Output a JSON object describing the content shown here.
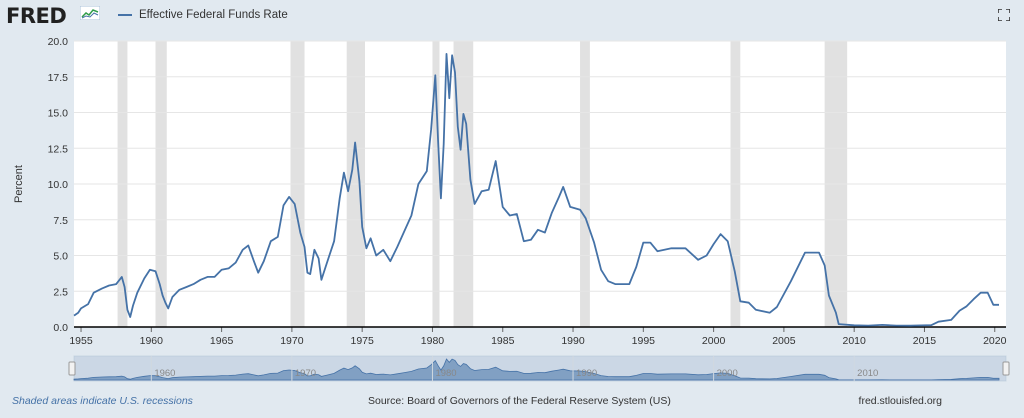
{
  "header": {
    "logo": "FRED",
    "legend_label": "Effective Federal Funds Rate",
    "series_color": "#4572a7",
    "fullscreen_icon": "fullscreen-icon"
  },
  "footer": {
    "note": "Shaded areas indicate U.S. recessions",
    "source": "Source: Board of Governors of the Federal Reserve System (US)",
    "site": "fred.stlouisfed.org"
  },
  "chart_data": {
    "type": "line",
    "ylabel": "Percent",
    "xlim": [
      1954.5,
      2020.8
    ],
    "ylim": [
      0,
      20
    ],
    "grid": true,
    "legend_position": "top-left",
    "yticks": [
      "0.0",
      "2.5",
      "5.0",
      "7.5",
      "10.0",
      "12.5",
      "15.0",
      "17.5",
      "20.0"
    ],
    "xticks": [
      "1955",
      "1960",
      "1965",
      "1970",
      "1975",
      "1980",
      "1985",
      "1990",
      "1995",
      "2000",
      "2005",
      "2010",
      "2015",
      "2020"
    ],
    "navigator_ticks": [
      "1960",
      "1970",
      "1980",
      "1990",
      "2000",
      "2010"
    ],
    "recessions": [
      [
        1957.6,
        1958.3
      ],
      [
        1960.3,
        1961.1
      ],
      [
        1969.9,
        1970.9
      ],
      [
        1973.9,
        1975.2
      ],
      [
        1980.0,
        1980.5
      ],
      [
        1981.5,
        1982.9
      ],
      [
        1990.5,
        1991.2
      ],
      [
        2001.2,
        2001.9
      ],
      [
        2007.9,
        2009.5
      ]
    ],
    "series": [
      {
        "name": "Effective Federal Funds Rate",
        "color": "#4572a7",
        "points": [
          [
            1954.5,
            0.8
          ],
          [
            1954.8,
            1.0
          ],
          [
            1955.0,
            1.3
          ],
          [
            1955.5,
            1.6
          ],
          [
            1955.9,
            2.4
          ],
          [
            1956.5,
            2.7
          ],
          [
            1957.0,
            2.9
          ],
          [
            1957.5,
            3.0
          ],
          [
            1957.9,
            3.5
          ],
          [
            1958.1,
            2.8
          ],
          [
            1958.3,
            1.2
          ],
          [
            1958.5,
            0.7
          ],
          [
            1958.7,
            1.5
          ],
          [
            1959.0,
            2.4
          ],
          [
            1959.5,
            3.4
          ],
          [
            1959.9,
            4.0
          ],
          [
            1960.3,
            3.9
          ],
          [
            1960.6,
            3.0
          ],
          [
            1960.8,
            2.2
          ],
          [
            1961.0,
            1.7
          ],
          [
            1961.2,
            1.3
          ],
          [
            1961.5,
            2.1
          ],
          [
            1962.0,
            2.6
          ],
          [
            1962.5,
            2.8
          ],
          [
            1963.0,
            3.0
          ],
          [
            1963.5,
            3.3
          ],
          [
            1964.0,
            3.5
          ],
          [
            1964.5,
            3.5
          ],
          [
            1965.0,
            4.0
          ],
          [
            1965.5,
            4.1
          ],
          [
            1966.0,
            4.5
          ],
          [
            1966.5,
            5.4
          ],
          [
            1966.9,
            5.7
          ],
          [
            1967.3,
            4.6
          ],
          [
            1967.6,
            3.8
          ],
          [
            1968.0,
            4.6
          ],
          [
            1968.5,
            6.0
          ],
          [
            1969.0,
            6.3
          ],
          [
            1969.4,
            8.5
          ],
          [
            1969.8,
            9.1
          ],
          [
            1970.2,
            8.6
          ],
          [
            1970.6,
            6.6
          ],
          [
            1970.9,
            5.6
          ],
          [
            1971.1,
            3.8
          ],
          [
            1971.3,
            3.7
          ],
          [
            1971.6,
            5.4
          ],
          [
            1971.9,
            4.8
          ],
          [
            1972.1,
            3.3
          ],
          [
            1972.5,
            4.5
          ],
          [
            1973.0,
            6.0
          ],
          [
            1973.4,
            9.0
          ],
          [
            1973.7,
            10.8
          ],
          [
            1974.0,
            9.5
          ],
          [
            1974.3,
            11.0
          ],
          [
            1974.5,
            12.9
          ],
          [
            1974.8,
            10.2
          ],
          [
            1975.0,
            7.0
          ],
          [
            1975.3,
            5.5
          ],
          [
            1975.6,
            6.2
          ],
          [
            1976.0,
            5.0
          ],
          [
            1976.5,
            5.4
          ],
          [
            1977.0,
            4.6
          ],
          [
            1977.5,
            5.6
          ],
          [
            1978.0,
            6.7
          ],
          [
            1978.5,
            7.8
          ],
          [
            1979.0,
            10.0
          ],
          [
            1979.6,
            10.9
          ],
          [
            1979.9,
            13.8
          ],
          [
            1980.2,
            17.6
          ],
          [
            1980.4,
            13.0
          ],
          [
            1980.6,
            9.0
          ],
          [
            1980.8,
            12.8
          ],
          [
            1981.0,
            19.1
          ],
          [
            1981.2,
            16.0
          ],
          [
            1981.4,
            19.0
          ],
          [
            1981.6,
            17.8
          ],
          [
            1981.8,
            14.0
          ],
          [
            1982.0,
            12.4
          ],
          [
            1982.2,
            14.9
          ],
          [
            1982.4,
            14.2
          ],
          [
            1982.7,
            10.3
          ],
          [
            1983.0,
            8.6
          ],
          [
            1983.5,
            9.5
          ],
          [
            1984.0,
            9.6
          ],
          [
            1984.5,
            11.6
          ],
          [
            1985.0,
            8.4
          ],
          [
            1985.5,
            7.8
          ],
          [
            1986.0,
            7.9
          ],
          [
            1986.5,
            6.0
          ],
          [
            1987.0,
            6.1
          ],
          [
            1987.5,
            6.8
          ],
          [
            1988.0,
            6.6
          ],
          [
            1988.5,
            8.0
          ],
          [
            1989.0,
            9.1
          ],
          [
            1989.3,
            9.8
          ],
          [
            1989.8,
            8.4
          ],
          [
            1990.5,
            8.2
          ],
          [
            1990.9,
            7.6
          ],
          [
            1991.5,
            5.9
          ],
          [
            1992.0,
            4.0
          ],
          [
            1992.5,
            3.2
          ],
          [
            1993.0,
            3.0
          ],
          [
            1994.0,
            3.0
          ],
          [
            1994.5,
            4.2
          ],
          [
            1995.0,
            5.9
          ],
          [
            1995.5,
            5.9
          ],
          [
            1996.0,
            5.3
          ],
          [
            1997.0,
            5.5
          ],
          [
            1998.0,
            5.5
          ],
          [
            1998.9,
            4.7
          ],
          [
            1999.5,
            5.0
          ],
          [
            2000.0,
            5.8
          ],
          [
            2000.5,
            6.5
          ],
          [
            2001.0,
            6.0
          ],
          [
            2001.5,
            3.9
          ],
          [
            2001.9,
            1.8
          ],
          [
            2002.5,
            1.7
          ],
          [
            2003.0,
            1.2
          ],
          [
            2004.0,
            1.0
          ],
          [
            2004.5,
            1.4
          ],
          [
            2005.5,
            3.2
          ],
          [
            2006.5,
            5.2
          ],
          [
            2007.5,
            5.2
          ],
          [
            2007.9,
            4.3
          ],
          [
            2008.2,
            2.2
          ],
          [
            2008.7,
            1.0
          ],
          [
            2008.9,
            0.2
          ],
          [
            2010.0,
            0.12
          ],
          [
            2011.0,
            0.1
          ],
          [
            2012.0,
            0.15
          ],
          [
            2013.0,
            0.1
          ],
          [
            2014.0,
            0.09
          ],
          [
            2015.5,
            0.13
          ],
          [
            2016.0,
            0.37
          ],
          [
            2016.9,
            0.5
          ],
          [
            2017.5,
            1.15
          ],
          [
            2018.0,
            1.45
          ],
          [
            2018.5,
            1.95
          ],
          [
            2019.0,
            2.4
          ],
          [
            2019.5,
            2.4
          ],
          [
            2019.9,
            1.55
          ],
          [
            2020.3,
            1.55
          ]
        ]
      }
    ]
  }
}
